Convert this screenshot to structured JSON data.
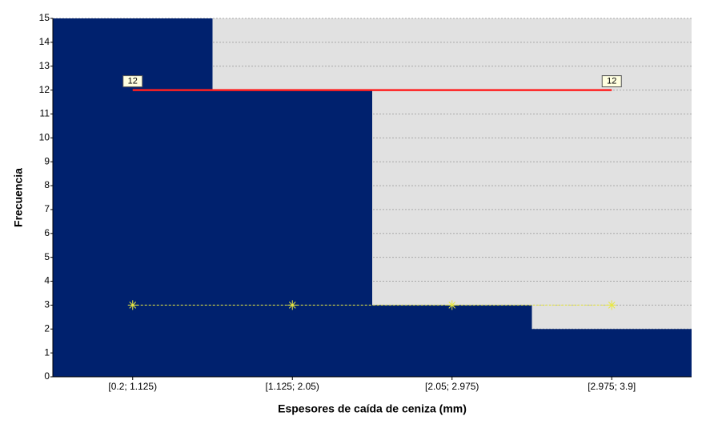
{
  "chart_data": {
    "type": "bar",
    "xlabel": "Espesores de caída de ceniza (mm)",
    "ylabel": "Frecuencia",
    "categories": [
      "[0.2; 1.125)",
      "[1.125; 2.05)",
      "[2.05; 2.975)",
      "[2.975; 3.9]"
    ],
    "values": [
      15,
      12,
      3,
      2
    ],
    "color": "#00216e",
    "ylim": [
      0,
      15
    ],
    "yticks": [
      0,
      1,
      2,
      3,
      4,
      5,
      6,
      7,
      8,
      9,
      10,
      11,
      12,
      13,
      14,
      15
    ],
    "grid": true,
    "lines": [
      {
        "color": "#ff2020",
        "values": [
          12,
          12,
          12,
          12
        ],
        "value_labels": [
          "12",
          null,
          null,
          "12"
        ],
        "dashed": false,
        "marker": false
      },
      {
        "color": "#e8e840",
        "values": [
          3,
          3,
          3,
          3
        ],
        "dashed": true,
        "marker": true
      }
    ]
  }
}
